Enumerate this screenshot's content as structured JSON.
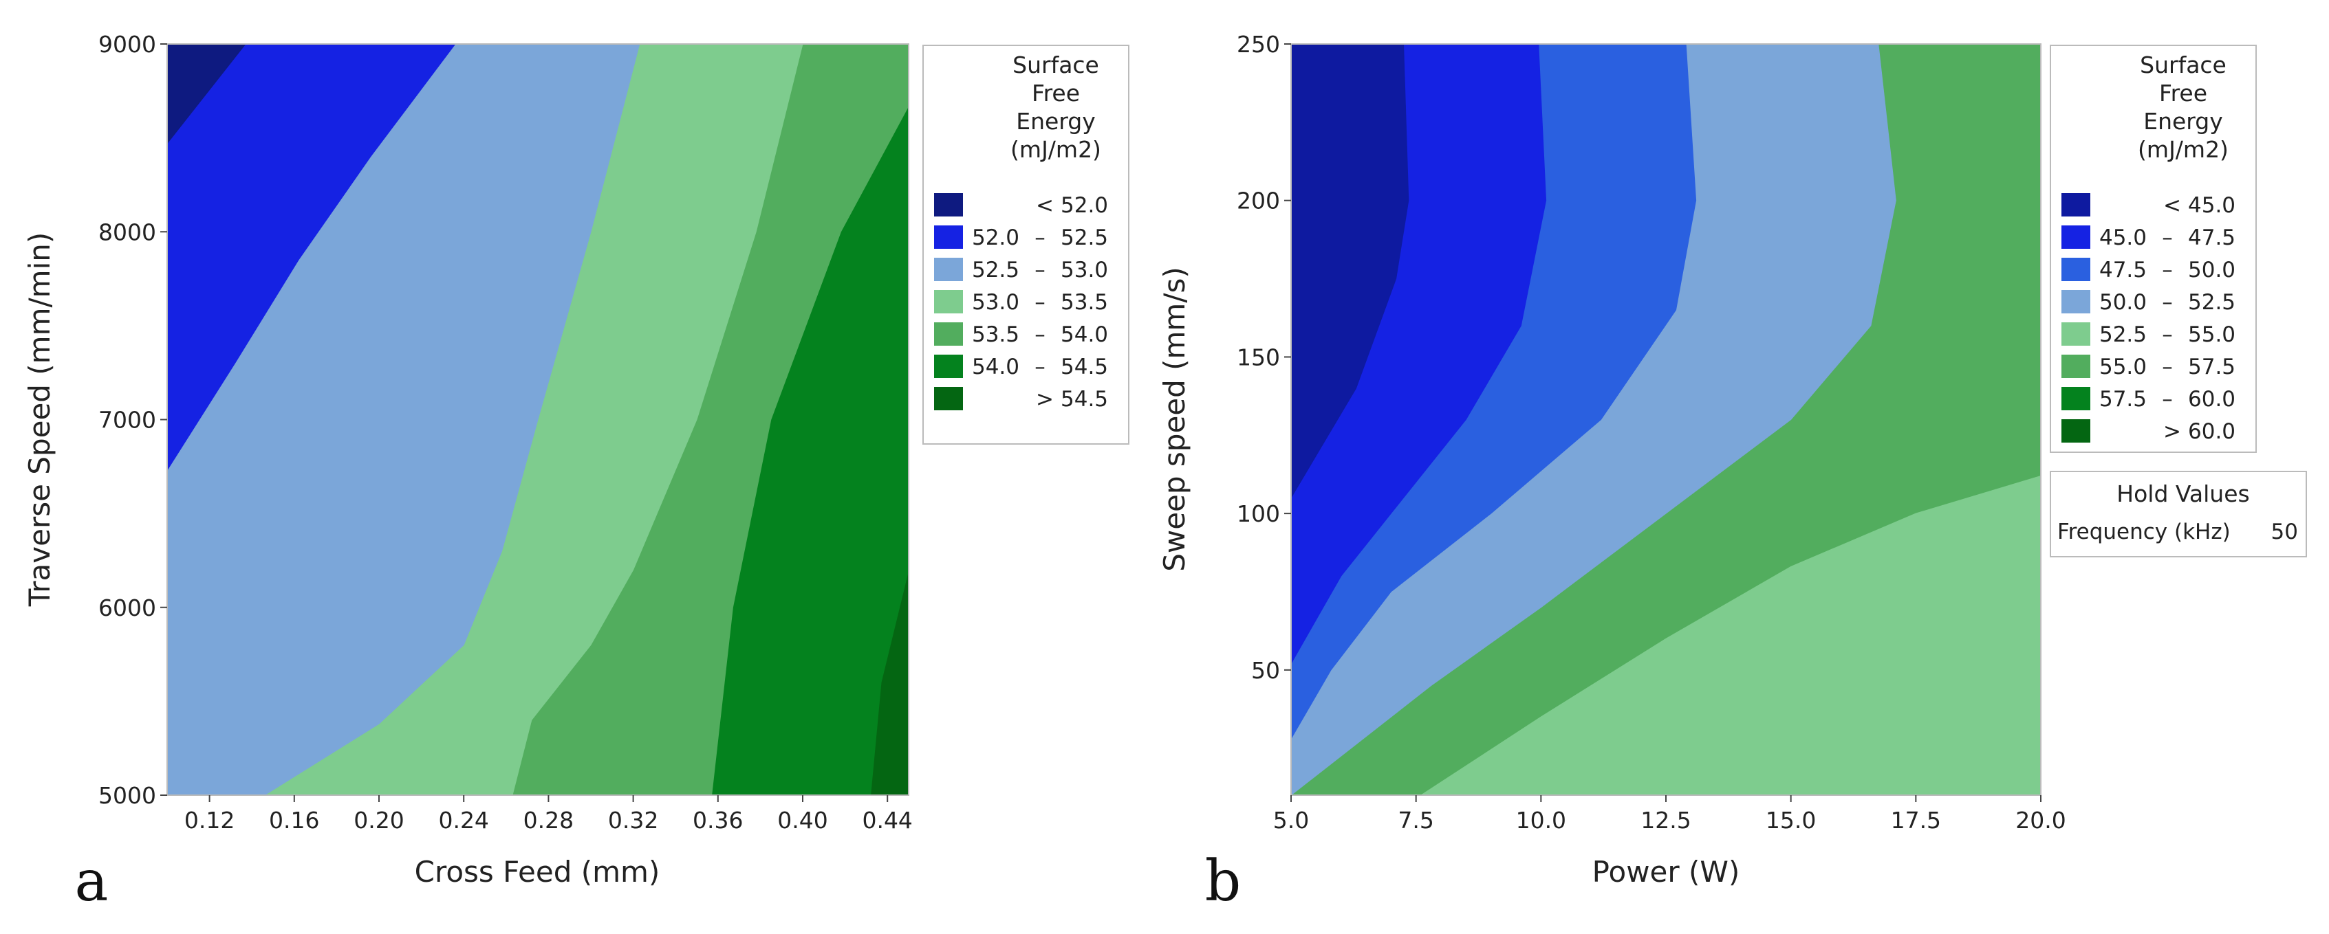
{
  "chart_data": [
    {
      "type": "contour",
      "panel_label": "a",
      "xlabel": "Cross Feed (mm)",
      "ylabel": "Traverse Speed (mm/min)",
      "xlim": [
        0.1,
        0.45
      ],
      "ylim": [
        5000,
        9000
      ],
      "xticks": [
        "0.12",
        "0.16",
        "0.20",
        "0.24",
        "0.28",
        "0.32",
        "0.36",
        "0.40",
        "0.44"
      ],
      "yticks": [
        "5000",
        "6000",
        "7000",
        "8000",
        "9000"
      ],
      "legend": {
        "title": [
          "Surface",
          "Free",
          "Energy",
          "(mJ/m2)"
        ],
        "items": [
          {
            "label": "<  52.0",
            "color": "#0e1a80"
          },
          {
            "label": "52.0  –  52.5",
            "color": "#1522e3"
          },
          {
            "label": "52.5  –  53.0",
            "color": "#7ba6d9"
          },
          {
            "label": "53.0  –  53.5",
            "color": "#7ecc8e"
          },
          {
            "label": "53.5  –  54.0",
            "color": "#52ad5e"
          },
          {
            "label": "54.0  –  54.5",
            "color": "#04821e"
          },
          {
            "label": ">  54.5",
            "color": "#046612"
          }
        ]
      },
      "contours": [
        [
          [
            0.1,
            9000
          ],
          [
            0.137,
            9000
          ],
          [
            0.1,
            8470
          ]
        ],
        [
          [
            0.1,
            9000
          ],
          [
            0.236,
            9000
          ],
          [
            0.196,
            8400
          ],
          [
            0.162,
            7850
          ],
          [
            0.132,
            7300
          ],
          [
            0.1,
            6730
          ]
        ],
        [
          [
            0.1,
            9000
          ],
          [
            0.323,
            9000
          ],
          [
            0.3,
            8000
          ],
          [
            0.275,
            7000
          ],
          [
            0.258,
            6300
          ],
          [
            0.24,
            5800
          ],
          [
            0.2,
            5380
          ],
          [
            0.146,
            5000
          ],
          [
            0.1,
            5000
          ]
        ],
        [
          [
            0.1,
            9000
          ],
          [
            0.4,
            9000
          ],
          [
            0.378,
            8000
          ],
          [
            0.35,
            7000
          ],
          [
            0.32,
            6200
          ],
          [
            0.3,
            5800
          ],
          [
            0.272,
            5400
          ],
          [
            0.263,
            5000
          ],
          [
            0.1,
            5000
          ]
        ],
        [
          [
            0.1,
            9000
          ],
          [
            0.45,
            9000
          ],
          [
            0.45,
            8670
          ],
          [
            0.418,
            8000
          ],
          [
            0.385,
            7000
          ],
          [
            0.367,
            6000
          ],
          [
            0.357,
            5000
          ],
          [
            0.1,
            5000
          ]
        ],
        [
          [
            0.1,
            9000
          ],
          [
            0.45,
            9000
          ],
          [
            0.45,
            6200
          ],
          [
            0.437,
            5600
          ],
          [
            0.432,
            5000
          ],
          [
            0.1,
            5000
          ]
        ]
      ]
    },
    {
      "type": "contour",
      "panel_label": "b",
      "xlabel": "Power (W)",
      "ylabel": "Sweep speed  (mm/s)",
      "xlim": [
        5.0,
        20.0
      ],
      "ylim": [
        10,
        250
      ],
      "xticks": [
        "5.0",
        "7.5",
        "10.0",
        "12.5",
        "15.0",
        "17.5",
        "20.0"
      ],
      "yticks": [
        "50",
        "100",
        "150",
        "200",
        "250"
      ],
      "legend": {
        "title": [
          "Surface",
          "Free",
          "Energy",
          "(mJ/m2)"
        ],
        "items": [
          {
            "label": "<  45.0",
            "color": "#0e1aa0"
          },
          {
            "label": "45.0  –  47.5",
            "color": "#1522e3"
          },
          {
            "label": "47.5  –  50.0",
            "color": "#2a60e0"
          },
          {
            "label": "50.0  –  52.5",
            "color": "#7ba6d9"
          },
          {
            "label": "52.5  –  55.0",
            "color": "#7ecc8e"
          },
          {
            "label": "55.0  –  57.5",
            "color": "#52ad5e"
          },
          {
            "label": "57.5  –  60.0",
            "color": "#04821e"
          },
          {
            "label": ">  60.0",
            "color": "#046612"
          }
        ]
      },
      "hold_values": {
        "title": "Hold Values",
        "label": "Frequency (kHz)",
        "value": "50"
      },
      "contours": [
        [
          [
            5.0,
            250
          ],
          [
            7.25,
            250
          ],
          [
            7.35,
            200
          ],
          [
            7.1,
            175
          ],
          [
            6.3,
            140
          ],
          [
            5.0,
            105
          ],
          [
            5.0,
            250
          ]
        ],
        [
          [
            5.0,
            250
          ],
          [
            9.95,
            250
          ],
          [
            10.1,
            200
          ],
          [
            9.6,
            160
          ],
          [
            8.5,
            130
          ],
          [
            7.0,
            100
          ],
          [
            6.0,
            80
          ],
          [
            5.0,
            52
          ],
          [
            5.0,
            250
          ]
        ],
        [
          [
            5.0,
            250
          ],
          [
            12.9,
            250
          ],
          [
            13.1,
            200
          ],
          [
            12.7,
            165
          ],
          [
            11.2,
            130
          ],
          [
            9.0,
            100
          ],
          [
            7.0,
            75
          ],
          [
            5.8,
            50
          ],
          [
            5.0,
            28
          ],
          [
            5.0,
            250
          ]
        ],
        [
          [
            5.0,
            250
          ],
          [
            16.75,
            250
          ],
          [
            17.1,
            200
          ],
          [
            16.6,
            160
          ],
          [
            15.0,
            130
          ],
          [
            12.5,
            100
          ],
          [
            10.0,
            70
          ],
          [
            7.8,
            45
          ],
          [
            5.0,
            10
          ],
          [
            5.0,
            250
          ]
        ],
        [
          [
            5.0,
            250
          ],
          [
            20.0,
            250
          ],
          [
            20.0,
            10
          ],
          [
            7.6,
            10
          ],
          [
            10.0,
            35
          ],
          [
            12.5,
            60
          ],
          [
            15.0,
            83
          ],
          [
            17.5,
            100
          ],
          [
            20.0,
            112
          ],
          [
            20.0,
            250
          ],
          [
            5.0,
            250
          ]
        ],
        [
          [
            5.0,
            250
          ],
          [
            20.0,
            250
          ],
          [
            20.0,
            112
          ],
          [
            17.5,
            100
          ],
          [
            15.0,
            83
          ],
          [
            12.5,
            60
          ],
          [
            10.0,
            35
          ],
          [
            7.6,
            10
          ],
          [
            5.0,
            10
          ],
          [
            5.0,
            250
          ]
        ]
      ]
    }
  ]
}
